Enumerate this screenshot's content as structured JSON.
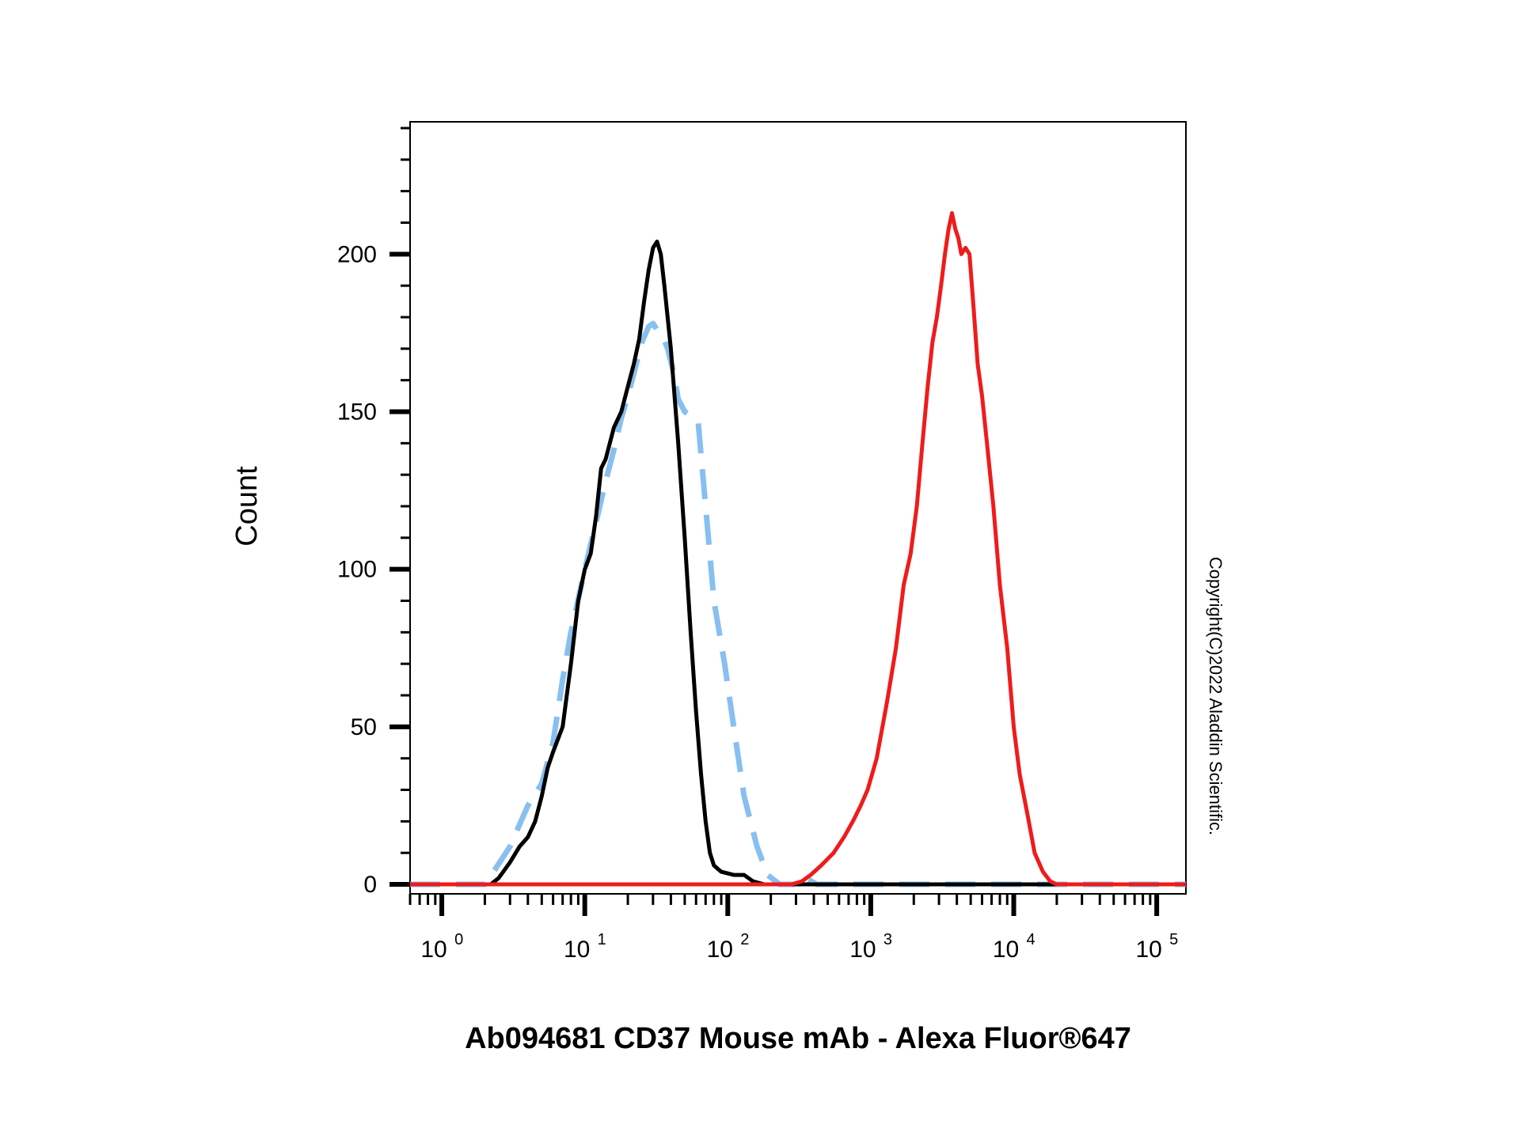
{
  "chart_data": {
    "type": "line",
    "title": "",
    "xlabel": "Ab094681 CD37 Mouse mAb - Alexa Fluor®647",
    "ylabel": "Count",
    "x_scale": "log10",
    "xlim": [
      0.6,
      160000
    ],
    "ylim": [
      -3,
      242
    ],
    "y_ticks": [
      {
        "value": 0,
        "label": "0"
      },
      {
        "value": 50,
        "label": "50"
      },
      {
        "value": 100,
        "label": "100"
      },
      {
        "value": 150,
        "label": "150"
      },
      {
        "value": 200,
        "label": "200"
      }
    ],
    "x_ticks": [
      {
        "value": 1,
        "base": "10",
        "exp": "0"
      },
      {
        "value": 10,
        "base": "10",
        "exp": "1"
      },
      {
        "value": 100,
        "base": "10",
        "exp": "2"
      },
      {
        "value": 1000,
        "base": "10",
        "exp": "3"
      },
      {
        "value": 10000,
        "base": "10",
        "exp": "4"
      },
      {
        "value": 100000,
        "base": "10",
        "exp": "5"
      }
    ],
    "grid": false,
    "legend": "none",
    "annotation": "Copyright(C)2022 Aladdin Scientific.",
    "series": [
      {
        "color": "#88bff0",
        "style": "dashed",
        "points": [
          [
            0.6,
            0
          ],
          [
            2.0,
            0
          ],
          [
            2.3,
            4
          ],
          [
            3,
            12
          ],
          [
            4,
            25
          ],
          [
            5,
            32
          ],
          [
            6,
            45
          ],
          [
            7,
            65
          ],
          [
            8,
            80
          ],
          [
            10,
            100
          ],
          [
            12,
            115
          ],
          [
            14,
            128
          ],
          [
            16,
            138
          ],
          [
            18,
            148
          ],
          [
            20,
            155
          ],
          [
            22,
            162
          ],
          [
            25,
            172
          ],
          [
            28,
            177
          ],
          [
            30,
            178
          ],
          [
            32,
            176
          ],
          [
            35,
            174
          ],
          [
            38,
            170
          ],
          [
            42,
            162
          ],
          [
            45,
            154
          ],
          [
            50,
            150
          ],
          [
            55,
            149
          ],
          [
            62,
            147
          ],
          [
            70,
            120
          ],
          [
            80,
            90
          ],
          [
            95,
            70
          ],
          [
            110,
            50
          ],
          [
            130,
            28
          ],
          [
            160,
            12
          ],
          [
            190,
            3
          ],
          [
            230,
            0
          ],
          [
            300,
            0
          ],
          [
            350,
            2
          ],
          [
            420,
            0
          ],
          [
            160000,
            0
          ]
        ]
      },
      {
        "color": "#000000",
        "style": "solid",
        "points": [
          [
            0.6,
            0
          ],
          [
            2.2,
            0
          ],
          [
            2.5,
            2
          ],
          [
            3,
            7
          ],
          [
            3.5,
            12
          ],
          [
            4,
            15
          ],
          [
            4.5,
            20
          ],
          [
            5,
            28
          ],
          [
            5.5,
            37
          ],
          [
            6,
            42
          ],
          [
            7,
            50
          ],
          [
            8,
            70
          ],
          [
            9,
            90
          ],
          [
            10,
            100
          ],
          [
            11,
            105
          ],
          [
            12,
            117
          ],
          [
            13,
            132
          ],
          [
            14,
            135
          ],
          [
            16,
            145
          ],
          [
            18,
            150
          ],
          [
            20,
            158
          ],
          [
            22,
            165
          ],
          [
            24,
            173
          ],
          [
            26,
            185
          ],
          [
            28,
            195
          ],
          [
            30,
            202
          ],
          [
            32,
            204
          ],
          [
            34,
            200
          ],
          [
            36,
            190
          ],
          [
            40,
            170
          ],
          [
            45,
            140
          ],
          [
            50,
            110
          ],
          [
            55,
            80
          ],
          [
            60,
            55
          ],
          [
            65,
            35
          ],
          [
            70,
            20
          ],
          [
            75,
            10
          ],
          [
            80,
            6
          ],
          [
            90,
            4
          ],
          [
            110,
            3
          ],
          [
            130,
            3
          ],
          [
            150,
            1
          ],
          [
            180,
            0
          ],
          [
            160000,
            0
          ]
        ]
      },
      {
        "color": "#ee1c1c",
        "style": "solid",
        "points": [
          [
            0.6,
            0
          ],
          [
            280,
            0
          ],
          [
            330,
            1
          ],
          [
            380,
            3
          ],
          [
            450,
            6
          ],
          [
            550,
            10
          ],
          [
            650,
            15
          ],
          [
            750,
            20
          ],
          [
            850,
            25
          ],
          [
            950,
            30
          ],
          [
            1100,
            40
          ],
          [
            1300,
            58
          ],
          [
            1500,
            75
          ],
          [
            1700,
            95
          ],
          [
            1900,
            105
          ],
          [
            2100,
            120
          ],
          [
            2300,
            140
          ],
          [
            2500,
            158
          ],
          [
            2700,
            172
          ],
          [
            2900,
            180
          ],
          [
            3100,
            190
          ],
          [
            3300,
            200
          ],
          [
            3500,
            208
          ],
          [
            3700,
            213
          ],
          [
            3900,
            208
          ],
          [
            4100,
            205
          ],
          [
            4300,
            200
          ],
          [
            4600,
            202
          ],
          [
            4900,
            200
          ],
          [
            5200,
            185
          ],
          [
            5600,
            165
          ],
          [
            6000,
            155
          ],
          [
            6500,
            140
          ],
          [
            7200,
            120
          ],
          [
            8000,
            95
          ],
          [
            9000,
            75
          ],
          [
            10000,
            50
          ],
          [
            11000,
            35
          ],
          [
            12500,
            22
          ],
          [
            14000,
            10
          ],
          [
            16000,
            4
          ],
          [
            18000,
            1
          ],
          [
            20000,
            0
          ],
          [
            160000,
            0
          ]
        ]
      }
    ]
  }
}
